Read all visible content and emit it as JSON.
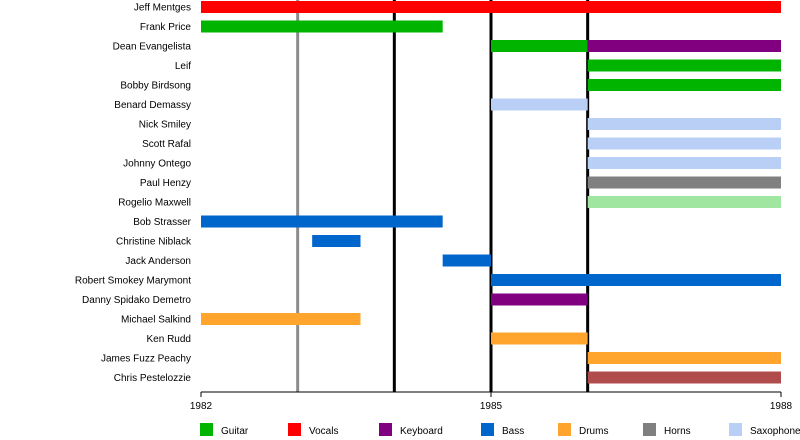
{
  "chart_data": {
    "type": "timeline",
    "title": "",
    "x_start": 1982,
    "x_end": 1988,
    "ticks": [
      "1982",
      "1985",
      "1988"
    ],
    "major_lines": [
      1984,
      1985,
      1986
    ],
    "minor_lines": [
      1983
    ],
    "legend": [
      {
        "role": "Guitar",
        "color": "#00b400"
      },
      {
        "role": "Vocals",
        "color": "#ff0000"
      },
      {
        "role": "Keyboard",
        "color": "#800080"
      },
      {
        "role": "Bass",
        "color": "#0066cc"
      },
      {
        "role": "Drums",
        "color": "#ffa52e"
      },
      {
        "role": "Horns",
        "color": "#808080"
      },
      {
        "role": "Saxophone",
        "color": "#b9cff5"
      }
    ],
    "members": [
      {
        "name": "Jeff Mentges",
        "bars": [
          {
            "role": "Vocals",
            "color": "#ff0000",
            "start": 1982.0,
            "end": 1988.0
          }
        ]
      },
      {
        "name": "Frank Price",
        "bars": [
          {
            "role": "Guitar",
            "color": "#00b400",
            "start": 1982.0,
            "end": 1984.5
          }
        ]
      },
      {
        "name": "Dean Evangelista",
        "bars": [
          {
            "role": "Guitar",
            "color": "#00b400",
            "start": 1985.0,
            "end": 1986.0
          },
          {
            "role": "Keyboard",
            "color": "#800080",
            "start": 1986.0,
            "end": 1988.0
          }
        ]
      },
      {
        "name": "Leif",
        "bars": [
          {
            "role": "Guitar",
            "color": "#00b400",
            "start": 1986.0,
            "end": 1988.0
          }
        ]
      },
      {
        "name": "Bobby Birdsong",
        "bars": [
          {
            "role": "Guitar",
            "color": "#00b400",
            "start": 1986.0,
            "end": 1988.0
          }
        ]
      },
      {
        "name": "Benard Demassy",
        "bars": [
          {
            "role": "Saxophone",
            "color": "#b9cff5",
            "start": 1985.0,
            "end": 1986.0
          }
        ]
      },
      {
        "name": "Nick Smiley",
        "bars": [
          {
            "role": "Saxophone",
            "color": "#b9cff5",
            "start": 1986.0,
            "end": 1988.0
          }
        ]
      },
      {
        "name": "Scott Rafal",
        "bars": [
          {
            "role": "Saxophone",
            "color": "#b9cff5",
            "start": 1986.0,
            "end": 1988.0
          }
        ]
      },
      {
        "name": "Johnny Ontego",
        "bars": [
          {
            "role": "Saxophone",
            "color": "#b9cff5",
            "start": 1986.0,
            "end": 1988.0
          }
        ]
      },
      {
        "name": "Paul Henzy",
        "bars": [
          {
            "role": "Horns",
            "color": "#808080",
            "start": 1986.0,
            "end": 1988.0
          }
        ]
      },
      {
        "name": "Rogelio Maxwell",
        "bars": [
          {
            "role": "",
            "color": "#a0e6a0",
            "start": 1986.0,
            "end": 1988.0
          }
        ]
      },
      {
        "name": "Bob Strasser",
        "bars": [
          {
            "role": "Bass",
            "color": "#0066cc",
            "start": 1982.0,
            "end": 1984.5
          }
        ]
      },
      {
        "name": "Christine Niblack",
        "bars": [
          {
            "role": "Bass",
            "color": "#0066cc",
            "start": 1983.15,
            "end": 1983.65
          }
        ]
      },
      {
        "name": "Jack Anderson",
        "bars": [
          {
            "role": "Bass",
            "color": "#0066cc",
            "start": 1984.5,
            "end": 1985.0
          }
        ]
      },
      {
        "name": "Robert Smokey Marymont",
        "bars": [
          {
            "role": "Bass",
            "color": "#0066cc",
            "start": 1985.0,
            "end": 1988.0
          }
        ]
      },
      {
        "name": "Danny Spidako Demetro",
        "bars": [
          {
            "role": "Keyboard",
            "color": "#800080",
            "start": 1985.0,
            "end": 1986.0
          }
        ]
      },
      {
        "name": "Michael Salkind",
        "bars": [
          {
            "role": "Drums",
            "color": "#ffa52e",
            "start": 1982.0,
            "end": 1983.65
          }
        ]
      },
      {
        "name": "Ken Rudd",
        "bars": [
          {
            "role": "Drums",
            "color": "#ffa52e",
            "start": 1985.0,
            "end": 1986.0
          }
        ]
      },
      {
        "name": "James Fuzz Peachy",
        "bars": [
          {
            "role": "Drums",
            "color": "#ffa52e",
            "start": 1986.0,
            "end": 1988.0
          }
        ]
      },
      {
        "name": "Chris Pestelozzie",
        "bars": [
          {
            "role": "",
            "color": "#b04c4c",
            "start": 1986.0,
            "end": 1988.0
          }
        ]
      }
    ]
  }
}
